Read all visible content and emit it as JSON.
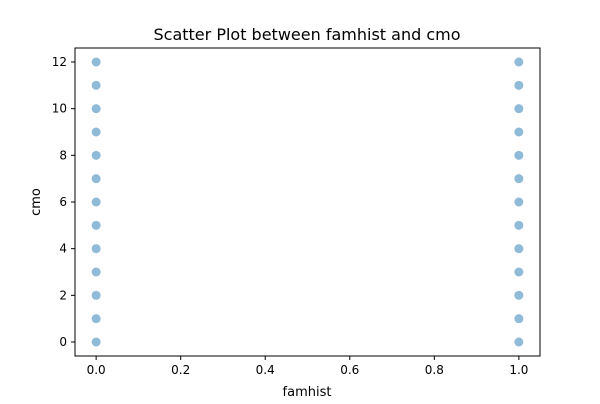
{
  "chart_data": {
    "type": "scatter",
    "title": "Scatter Plot between famhist and cmo",
    "xlabel": "famhist",
    "ylabel": "cmo",
    "xlim": [
      -0.05,
      1.05
    ],
    "ylim": [
      -0.6,
      12.6
    ],
    "xticks": [
      0.0,
      0.2,
      0.4,
      0.6,
      0.8,
      1.0
    ],
    "xtick_labels": [
      "0.0",
      "0.2",
      "0.4",
      "0.6",
      "0.8",
      "1.0"
    ],
    "yticks": [
      0,
      2,
      4,
      6,
      8,
      10,
      12
    ],
    "ytick_labels": [
      "0",
      "2",
      "4",
      "6",
      "8",
      "10",
      "12"
    ],
    "grid": false,
    "point_color": "#1f77b4",
    "point_alpha": 0.5,
    "series": [
      {
        "points": [
          [
            0,
            0
          ],
          [
            0,
            1
          ],
          [
            0,
            2
          ],
          [
            0,
            3
          ],
          [
            0,
            4
          ],
          [
            0,
            5
          ],
          [
            0,
            6
          ],
          [
            0,
            7
          ],
          [
            0,
            8
          ],
          [
            0,
            9
          ],
          [
            0,
            10
          ],
          [
            0,
            11
          ],
          [
            0,
            12
          ],
          [
            1,
            0
          ],
          [
            1,
            1
          ],
          [
            1,
            2
          ],
          [
            1,
            3
          ],
          [
            1,
            4
          ],
          [
            1,
            5
          ],
          [
            1,
            6
          ],
          [
            1,
            7
          ],
          [
            1,
            8
          ],
          [
            1,
            9
          ],
          [
            1,
            10
          ],
          [
            1,
            11
          ],
          [
            1,
            12
          ]
        ]
      }
    ]
  }
}
